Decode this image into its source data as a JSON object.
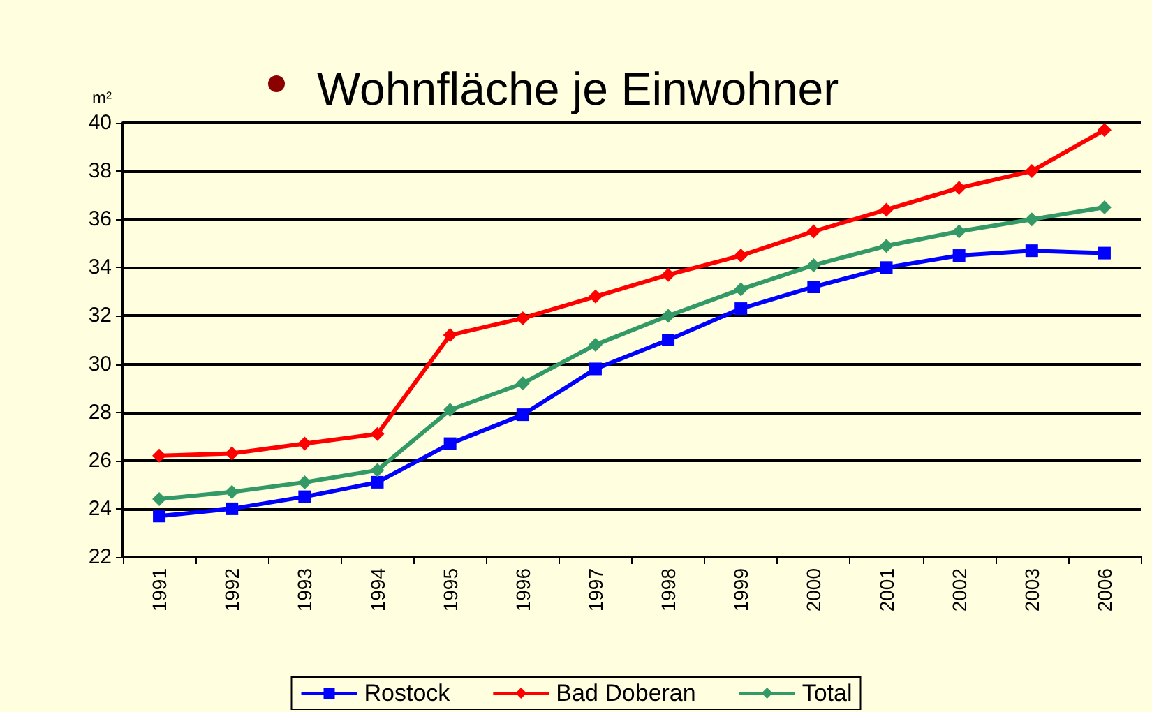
{
  "chart_data": {
    "type": "line",
    "title": "Wohnfläche je Einwohner",
    "ylabel": "m²",
    "categories": [
      "1991",
      "1992",
      "1993",
      "1994",
      "1995",
      "1996",
      "1997",
      "1998",
      "1999",
      "2000",
      "2001",
      "2002",
      "2003",
      "2006"
    ],
    "series": [
      {
        "name": "Rostock",
        "color": "#0000ff",
        "marker": "square",
        "values": [
          23.7,
          24.0,
          24.5,
          25.1,
          26.7,
          27.9,
          29.8,
          31.0,
          32.3,
          33.2,
          34.0,
          34.5,
          34.7,
          34.6
        ]
      },
      {
        "name": "Bad Doberan",
        "color": "#ff0000",
        "marker": "diamond",
        "values": [
          26.2,
          26.3,
          26.7,
          27.1,
          31.2,
          31.9,
          32.8,
          33.7,
          34.5,
          35.5,
          36.4,
          37.3,
          38.0,
          39.7
        ]
      },
      {
        "name": "Total",
        "color": "#339966",
        "marker": "diamond",
        "values": [
          24.4,
          24.7,
          25.1,
          25.6,
          28.1,
          29.2,
          30.8,
          32.0,
          33.1,
          34.1,
          34.9,
          35.5,
          36.0,
          36.5
        ]
      }
    ],
    "ylim": [
      22,
      40
    ],
    "yticks": [
      22,
      24,
      26,
      28,
      30,
      32,
      34,
      36,
      38,
      40
    ],
    "grid": "y",
    "legend": "bottom",
    "line_style": "solid"
  }
}
